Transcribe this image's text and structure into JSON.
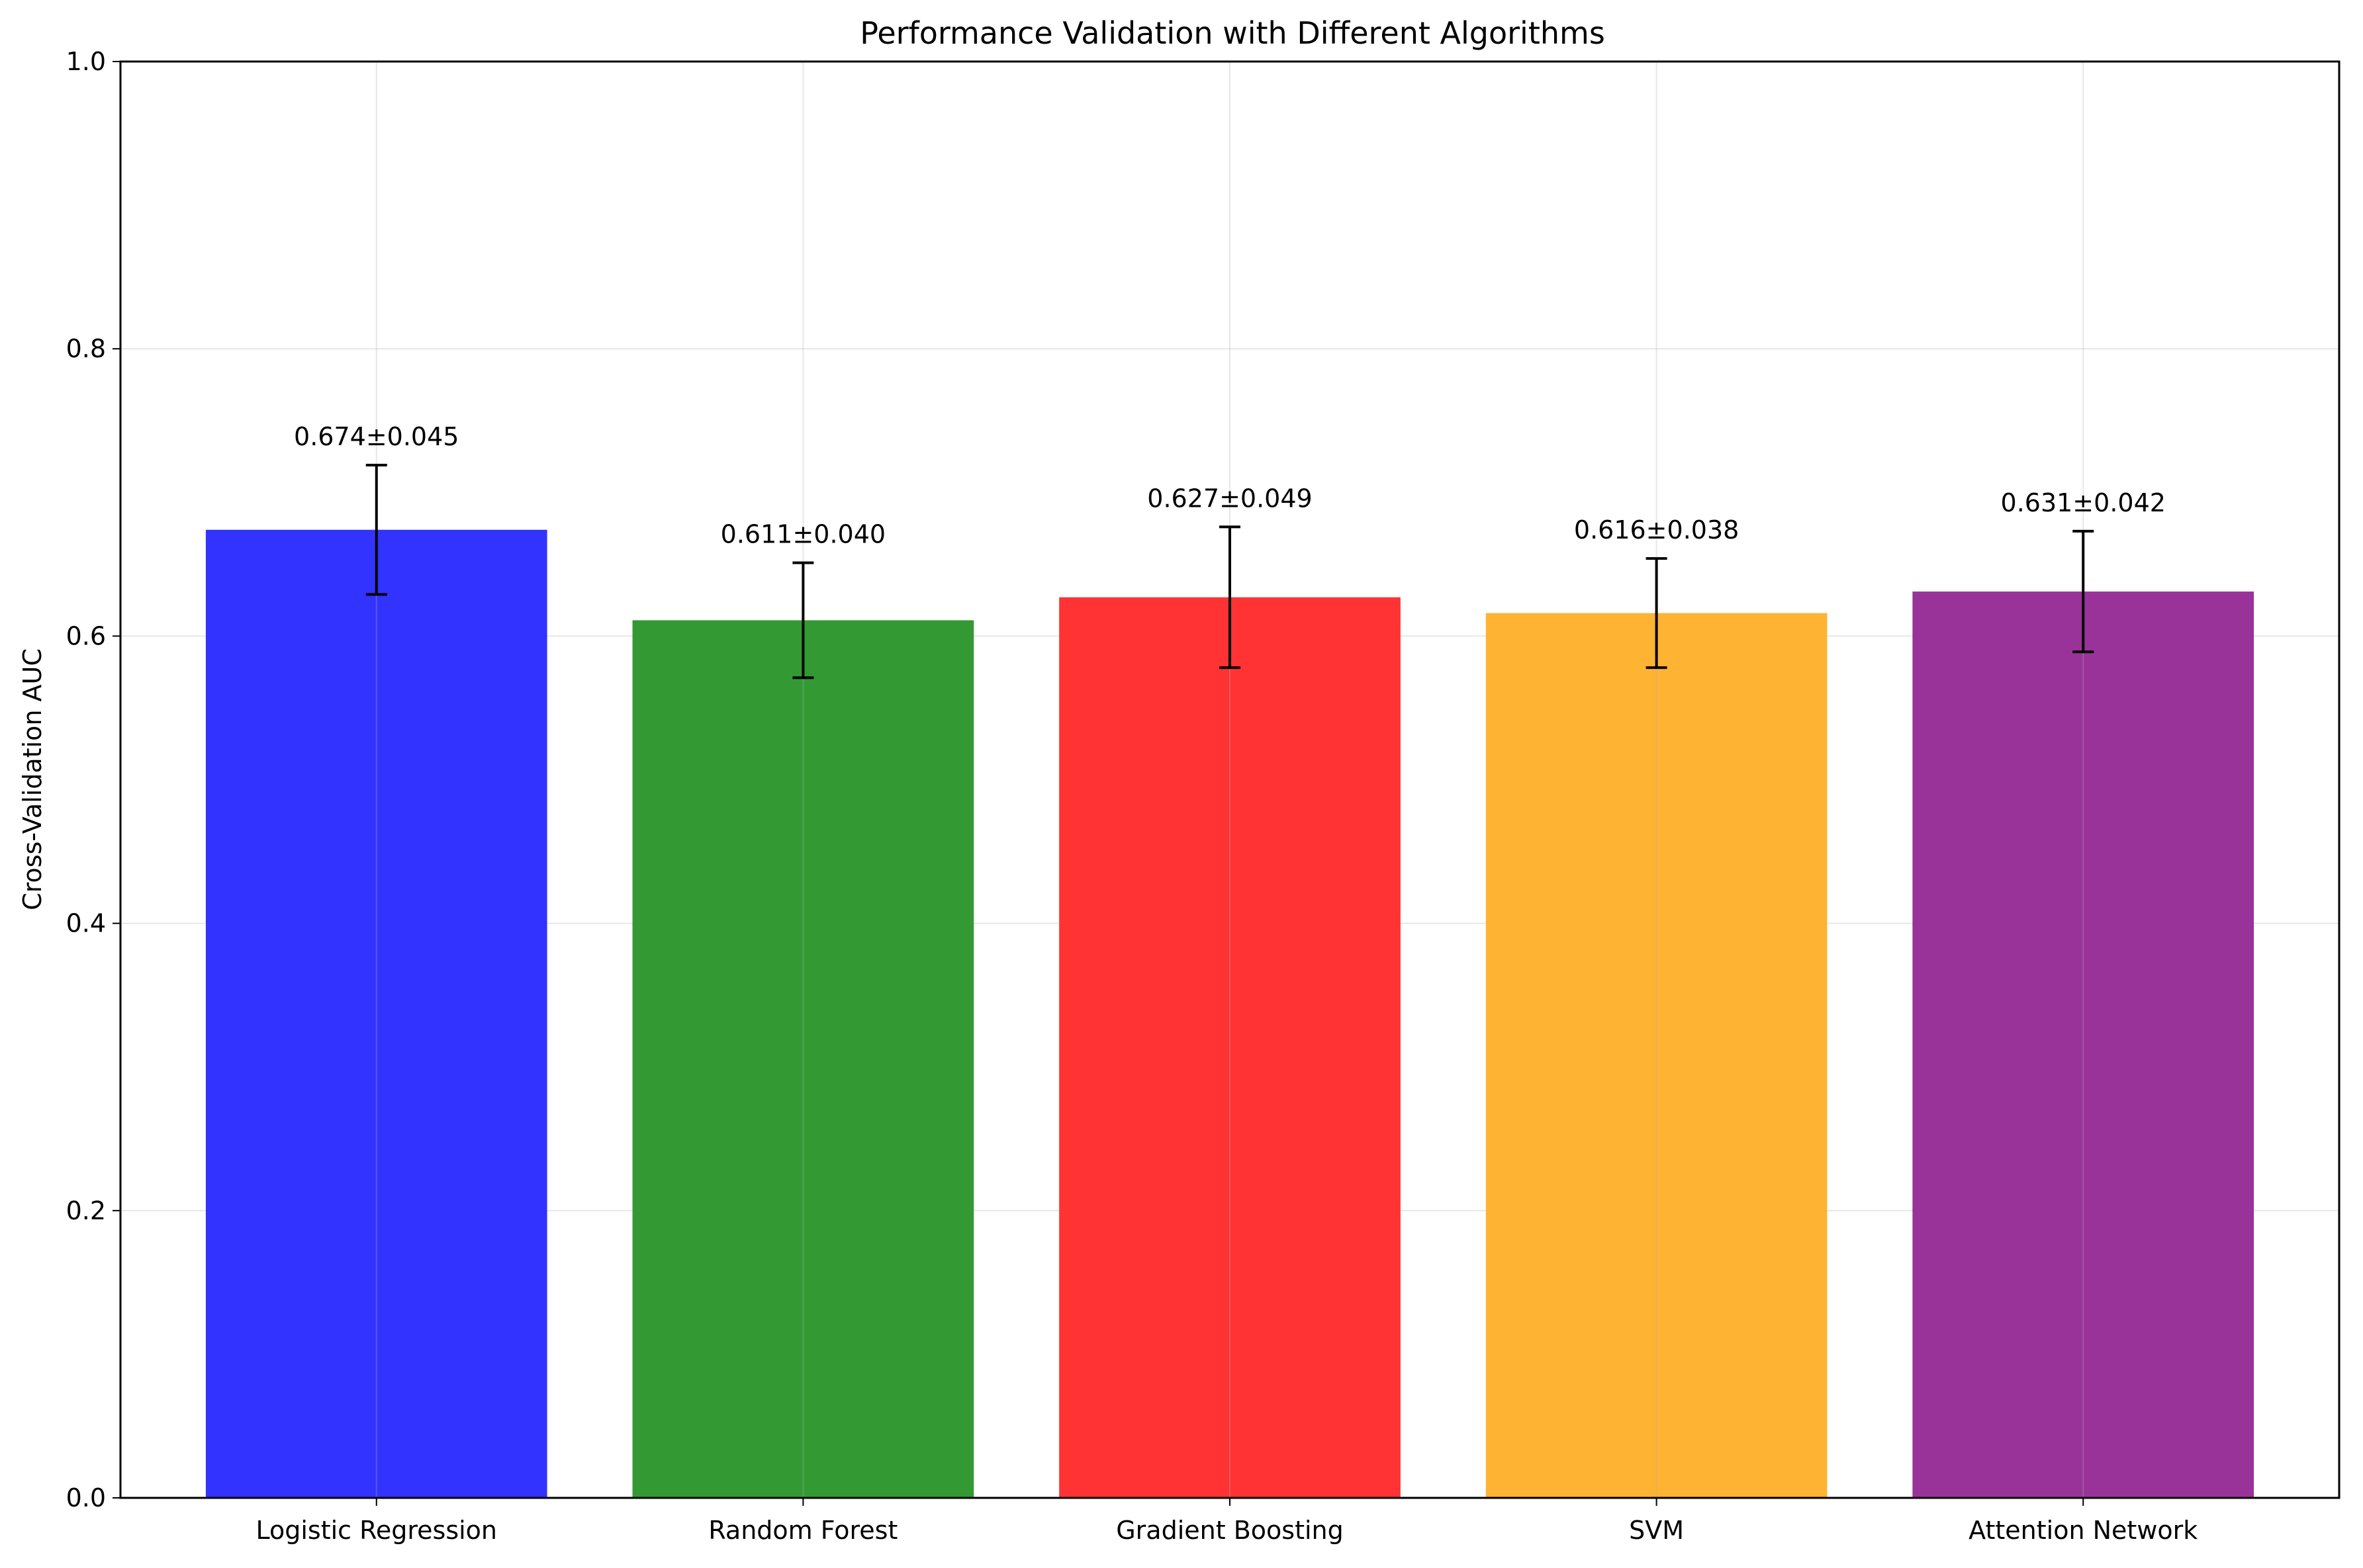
{
  "chart_data": {
    "type": "bar",
    "title": "Performance Validation with Different Algorithms",
    "xlabel": "",
    "ylabel": "Cross-Validation AUC",
    "ylim": [
      0,
      1.0
    ],
    "yticks": [
      "0.0",
      "0.2",
      "0.4",
      "0.6",
      "0.8",
      "1.0"
    ],
    "ytick_values": [
      0,
      0.2,
      0.4,
      0.6,
      0.8,
      1.0
    ],
    "categories": [
      "Logistic Regression",
      "Random Forest",
      "Gradient Boosting",
      "SVM",
      "Attention Network"
    ],
    "values": [
      0.674,
      0.611,
      0.627,
      0.616,
      0.631
    ],
    "errors": [
      0.045,
      0.04,
      0.049,
      0.038,
      0.042
    ],
    "data_labels": [
      "0.674±0.045",
      "0.611±0.040",
      "0.627±0.049",
      "0.616±0.038",
      "0.631±0.042"
    ],
    "colors": [
      "#3333ff",
      "#339933",
      "#ff3333",
      "#ffb333",
      "#993399"
    ],
    "grid": true,
    "legend": "none"
  }
}
